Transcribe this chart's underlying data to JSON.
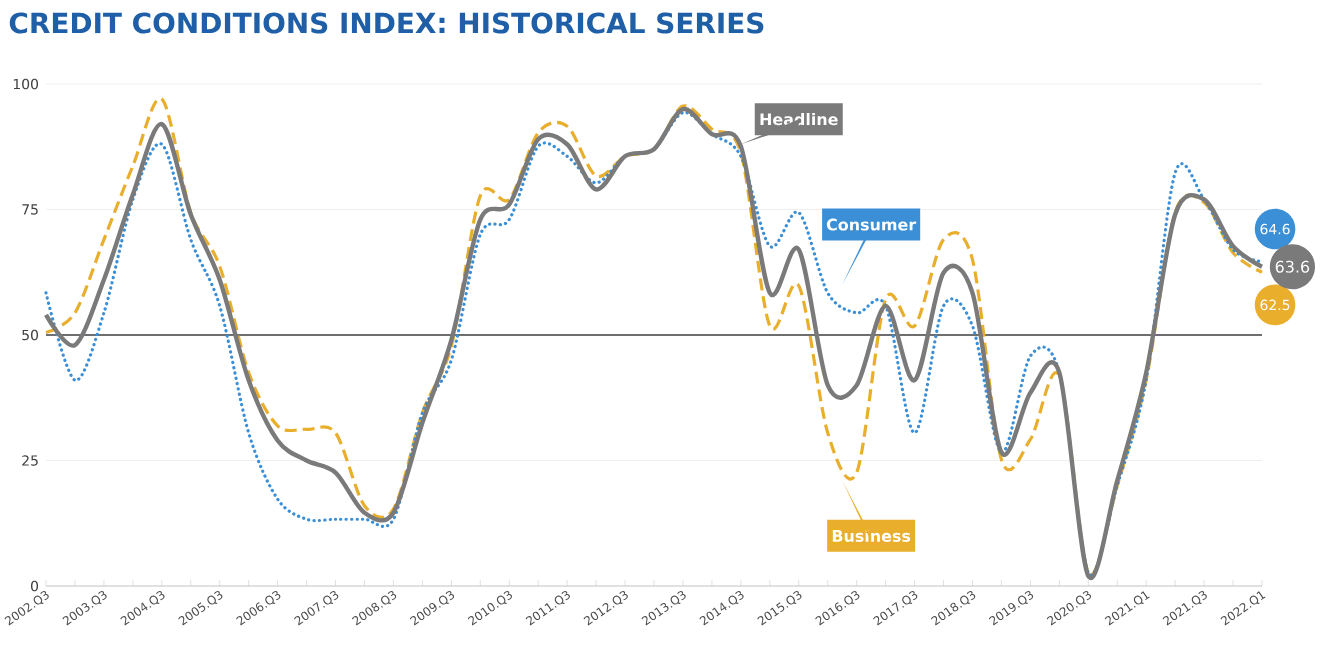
{
  "chart_data": {
    "type": "line",
    "title": "CREDIT CONDITIONS INDEX: HISTORICAL SERIES",
    "categories": [
      "2002.Q3",
      null,
      "2003.Q3",
      null,
      "2004.Q3",
      null,
      "2005.Q3",
      null,
      "2006.Q3",
      null,
      "2007.Q3",
      null,
      "2008.Q3",
      null,
      "2009.Q3",
      null,
      "2010.Q3",
      null,
      "2011.Q3",
      null,
      "2012.Q3",
      null,
      "2013.Q3",
      null,
      "2014.Q3",
      null,
      "2015.Q3",
      null,
      "2016.Q3",
      null,
      "2017.Q3",
      null,
      "2018.Q3",
      null,
      "2019.Q3",
      null,
      "2020.Q3",
      null,
      "2021.Q1",
      null,
      "2021.Q3",
      null,
      "2022.Q1"
    ],
    "series": [
      {
        "name": "Business",
        "color": "#e8ae2c",
        "line_style": "dashed",
        "values": [
          50.5,
          54.4,
          69,
          83.7,
          97,
          74.4,
          63.7,
          42.5,
          31.9,
          31.2,
          30.5,
          16,
          15.3,
          34.5,
          47.8,
          77.7,
          77,
          90.3,
          91.6,
          81.7,
          85.6,
          87,
          95.6,
          91,
          86.3,
          51.8,
          59.8,
          30.5,
          22.6,
          57.1,
          51.8,
          69,
          65,
          25.2,
          29.2,
          41.8,
          2.7,
          20,
          41,
          74.4,
          76.4,
          66.4,
          62.5
        ],
        "value_labels": [
          null,
          null,
          null,
          null,
          null,
          null,
          null,
          null,
          null,
          null,
          null,
          null,
          null,
          null,
          null,
          null,
          null,
          null,
          null,
          null,
          null,
          null,
          null,
          null,
          null,
          null,
          null,
          null,
          null,
          null,
          null,
          null,
          null,
          null,
          null,
          null,
          null,
          null,
          null,
          null,
          null,
          null,
          "62.5"
        ]
      },
      {
        "name": "Consumer",
        "color": "#3b8fd6",
        "line_style": "dotted",
        "values": [
          58.4,
          41,
          54.4,
          77,
          88,
          69,
          55.8,
          30.5,
          17.3,
          13.3,
          13.3,
          13.3,
          13.3,
          34.5,
          45,
          70,
          73,
          87.6,
          85.6,
          80.3,
          85.6,
          87,
          94.3,
          90,
          85.6,
          67.7,
          74.4,
          58.4,
          54.4,
          55.8,
          30.5,
          55.8,
          51.8,
          26.6,
          45.8,
          42.5,
          2.7,
          20,
          41,
          82.3,
          77,
          67,
          64.6
        ],
        "value_labels": [
          null,
          null,
          null,
          null,
          null,
          null,
          null,
          null,
          null,
          null,
          null,
          null,
          null,
          null,
          null,
          null,
          null,
          null,
          null,
          null,
          null,
          null,
          null,
          null,
          null,
          null,
          null,
          null,
          null,
          null,
          null,
          null,
          null,
          null,
          null,
          null,
          null,
          null,
          null,
          null,
          null,
          null,
          "64.6"
        ]
      },
      {
        "name": "Headline",
        "color": "#7a7a7a",
        "line_style": "solid",
        "values": [
          54,
          48,
          61,
          78,
          92,
          74,
          61,
          41,
          29,
          25,
          22.6,
          14.6,
          14.6,
          32.5,
          49,
          73,
          76,
          89,
          88,
          79,
          85.6,
          87,
          95,
          90,
          87.6,
          58.4,
          67,
          40,
          40,
          55.8,
          41,
          62.4,
          58.4,
          26.6,
          38.5,
          42.5,
          2,
          21,
          42.5,
          74,
          77,
          67.7,
          63.6
        ],
        "value_labels": [
          null,
          null,
          null,
          null,
          null,
          null,
          null,
          null,
          null,
          null,
          null,
          null,
          null,
          null,
          null,
          null,
          null,
          null,
          null,
          null,
          null,
          null,
          null,
          null,
          null,
          null,
          null,
          null,
          null,
          null,
          null,
          null,
          null,
          null,
          null,
          null,
          null,
          null,
          null,
          null,
          null,
          null,
          "63.6"
        ]
      }
    ],
    "ylim": [
      0,
      100
    ],
    "yticks": [
      0,
      25,
      50,
      75,
      100
    ],
    "grid": "y",
    "marker": "none",
    "ref_lines": [
      {
        "axis": "y",
        "value": 50,
        "color": "#6e6e6e"
      }
    ]
  }
}
